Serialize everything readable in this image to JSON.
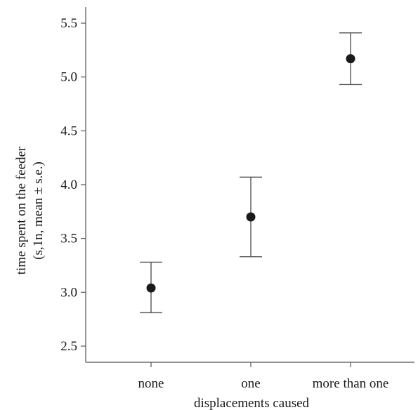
{
  "chart_data": {
    "type": "scatter",
    "categories": [
      "none",
      "one",
      "more than one"
    ],
    "points": [
      {
        "category": "none",
        "mean": 3.04,
        "lower": 2.81,
        "upper": 3.28
      },
      {
        "category": "one",
        "mean": 3.7,
        "lower": 3.33,
        "upper": 4.07
      },
      {
        "category": "more than one",
        "mean": 5.17,
        "lower": 4.93,
        "upper": 5.41
      }
    ],
    "xlabel": "displacements caused",
    "ylabel_line1": "time spent on the feeder",
    "ylabel_line2": "(s,1n, mean ± s.e.)",
    "yticks": [
      "2.5",
      "3.0",
      "3.5",
      "4.0",
      "4.5",
      "5.0",
      "5.5"
    ],
    "ylim": [
      2.35,
      5.65
    ],
    "grid": false,
    "legend": "none",
    "colors": {
      "marker": "#1a1a1a",
      "error_bar": "#555555",
      "axis": "#555555"
    }
  }
}
